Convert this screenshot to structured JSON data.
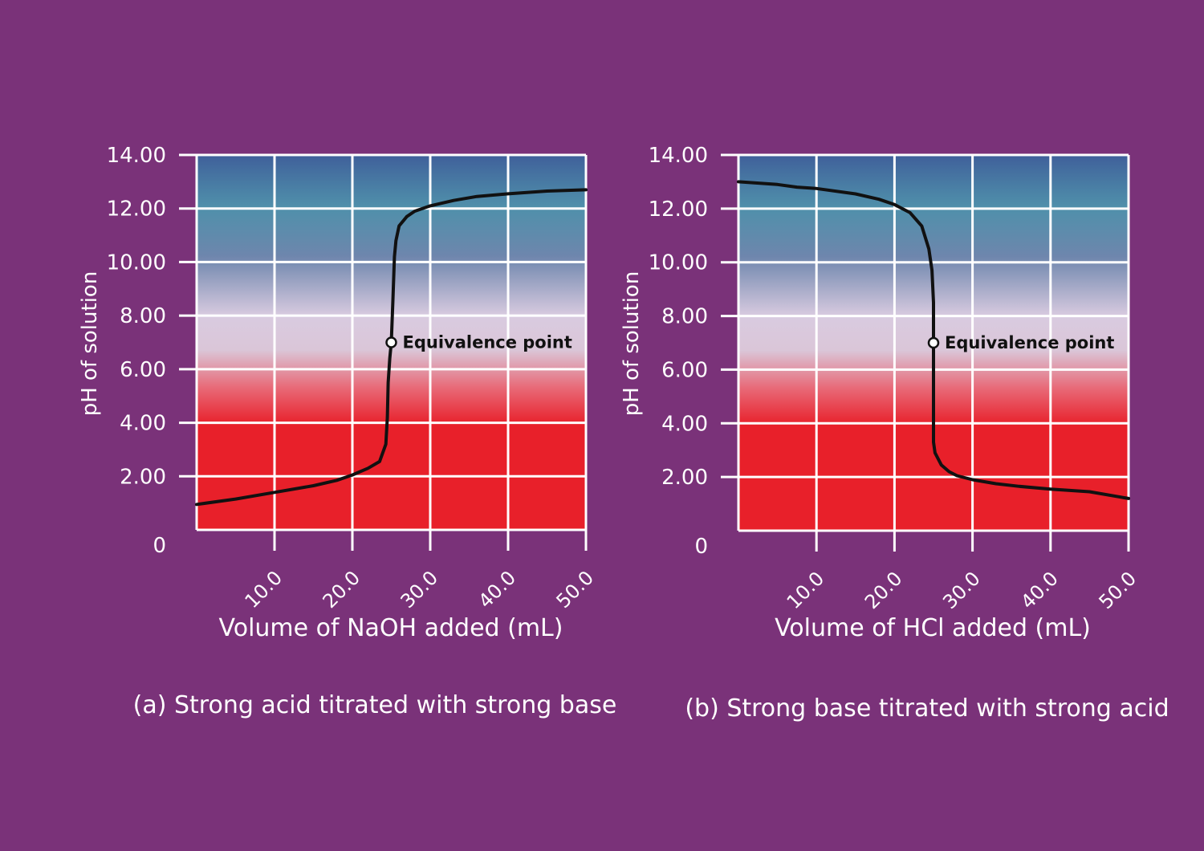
{
  "colors": {
    "background": "#7a3279",
    "grid": "#ffffff",
    "curve": "#111111",
    "acid_red": "#e8202a",
    "neutral": "#d9cbe0",
    "base_blue": "#3f5f9a",
    "base_teal": "#4b9ab0"
  },
  "chart_data": [
    {
      "type": "line",
      "caption": "(a) Strong acid titrated with strong base",
      "xlabel": "Volume of NaOH added (mL)",
      "ylabel": "pH of solution",
      "xlim": [
        0,
        50
      ],
      "ylim": [
        0,
        14
      ],
      "x_ticks": [
        "10.0",
        "20.0",
        "30.0",
        "40.0",
        "50.0"
      ],
      "y_ticks": [
        "0",
        "2.00",
        "4.00",
        "6.00",
        "8.00",
        "10.00",
        "12.00",
        "14.00"
      ],
      "grid": true,
      "annotation": {
        "label": "Equivalence point",
        "x": 25.0,
        "y": 7.0
      },
      "series": [
        {
          "name": "titration curve",
          "x": [
            0,
            5,
            10,
            15,
            18,
            20,
            22,
            23.5,
            24.3,
            24.5,
            24.6,
            24.8,
            25.0,
            25.2,
            25.4,
            25.6,
            26,
            27,
            28,
            30,
            33,
            36,
            40,
            45,
            50
          ],
          "y": [
            0.95,
            1.15,
            1.4,
            1.65,
            1.85,
            2.05,
            2.3,
            2.55,
            3.2,
            4.2,
            5.5,
            6.4,
            7.0,
            8.5,
            10.2,
            10.8,
            11.35,
            11.7,
            11.9,
            12.1,
            12.3,
            12.45,
            12.55,
            12.65,
            12.7
          ]
        }
      ]
    },
    {
      "type": "line",
      "caption": "(b) Strong base titrated with strong acid",
      "xlabel": "Volume of HCl added (mL)",
      "ylabel": "pH of solution",
      "xlim": [
        0,
        50
      ],
      "ylim": [
        0,
        14
      ],
      "x_ticks": [
        "10.0",
        "20.0",
        "30.0",
        "40.0",
        "50.0"
      ],
      "y_ticks": [
        "0",
        "2.00",
        "4.00",
        "6.00",
        "8.00",
        "10.00",
        "12.00",
        "14.00"
      ],
      "grid": true,
      "annotation": {
        "label": "Equivalence point",
        "x": 25.0,
        "y": 7.0
      },
      "series": [
        {
          "name": "titration curve",
          "x": [
            0,
            5,
            7.5,
            10,
            15,
            18,
            20,
            22,
            23.5,
            24.4,
            24.8,
            25.0,
            25.0,
            25.0,
            25.2,
            26,
            27,
            28,
            30,
            33,
            36,
            40,
            45,
            50
          ],
          "y": [
            13.0,
            12.9,
            12.8,
            12.75,
            12.55,
            12.35,
            12.15,
            11.85,
            11.35,
            10.5,
            9.7,
            8.5,
            7.0,
            3.3,
            2.9,
            2.45,
            2.2,
            2.05,
            1.9,
            1.75,
            1.65,
            1.55,
            1.45,
            1.2
          ]
        }
      ]
    }
  ]
}
